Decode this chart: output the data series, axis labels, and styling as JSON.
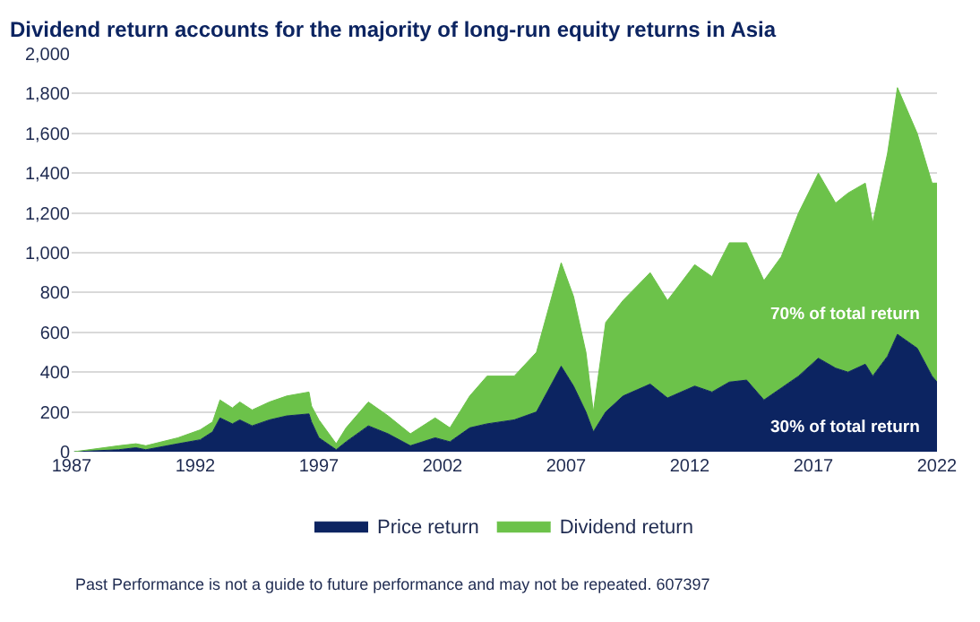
{
  "chart_data": {
    "type": "area",
    "stacked": true,
    "title": "Dividend return accounts for the majority of long-run equity returns in Asia",
    "x": [
      1987.1,
      1988.9,
      1989.6,
      1990.0,
      1991.3,
      1992.2,
      1992.7,
      1993.0,
      1993.5,
      1993.8,
      1994.3,
      1995.0,
      1995.7,
      1996.6,
      1996.7,
      1997.0,
      1997.7,
      1998.1,
      1999.0,
      1999.8,
      2000.7,
      2001.7,
      2002.3,
      2003.1,
      2003.8,
      2004.9,
      2005.8,
      2006.8,
      2007.3,
      2007.8,
      2008.1,
      2008.6,
      2009.3,
      2010.4,
      2011.1,
      2012.2,
      2012.9,
      2013.6,
      2014.3,
      2015.0,
      2015.7,
      2016.4,
      2017.2,
      2017.9,
      2018.4,
      2019.1,
      2019.4,
      2020.0,
      2020.4,
      2021.2,
      2021.8,
      2022.0
    ],
    "series": [
      {
        "name": "Price return",
        "color": "#0c2461",
        "values": [
          0,
          10,
          20,
          10,
          40,
          60,
          100,
          170,
          140,
          160,
          130,
          160,
          180,
          190,
          150,
          70,
          10,
          50,
          130,
          90,
          30,
          70,
          50,
          120,
          140,
          160,
          200,
          430,
          330,
          200,
          100,
          200,
          280,
          340,
          270,
          330,
          300,
          350,
          360,
          260,
          320,
          380,
          470,
          420,
          400,
          440,
          380,
          480,
          590,
          520,
          380,
          350
        ]
      },
      {
        "name": "Dividend return",
        "color": "#6cc24a",
        "values": [
          0,
          20,
          20,
          20,
          30,
          50,
          50,
          90,
          80,
          90,
          80,
          90,
          100,
          110,
          80,
          90,
          30,
          70,
          120,
          90,
          60,
          100,
          70,
          160,
          240,
          220,
          300,
          520,
          450,
          300,
          100,
          450,
          480,
          560,
          490,
          610,
          580,
          700,
          690,
          600,
          660,
          820,
          930,
          830,
          900,
          910,
          770,
          1020,
          1240,
          1080,
          970,
          1000
        ]
      }
    ],
    "xlim": [
      1987,
      2022
    ],
    "xticks": [
      1987,
      1992,
      1997,
      2002,
      2007,
      2012,
      2017,
      2022
    ],
    "ylim": [
      0,
      2000
    ],
    "yticks": [
      {
        "value": 0,
        "label": "0"
      },
      {
        "value": 200,
        "label": "200"
      },
      {
        "value": 400,
        "label": "400"
      },
      {
        "value": 600,
        "label": "600"
      },
      {
        "value": 800,
        "label": "800"
      },
      {
        "value": 1000,
        "label": "1,000"
      },
      {
        "value": 1200,
        "label": "1,200"
      },
      {
        "value": 1400,
        "label": "1,400"
      },
      {
        "value": 1600,
        "label": "1,600"
      },
      {
        "value": 1800,
        "label": "1,800"
      },
      {
        "value": 2000,
        "label": "2,000"
      }
    ],
    "grid": "y",
    "legend": "bottom",
    "annotations": [
      "70% of total return",
      "30% of total return",
      "Past Performance is not a guide to future performance and may not be repeated. 607397"
    ]
  }
}
